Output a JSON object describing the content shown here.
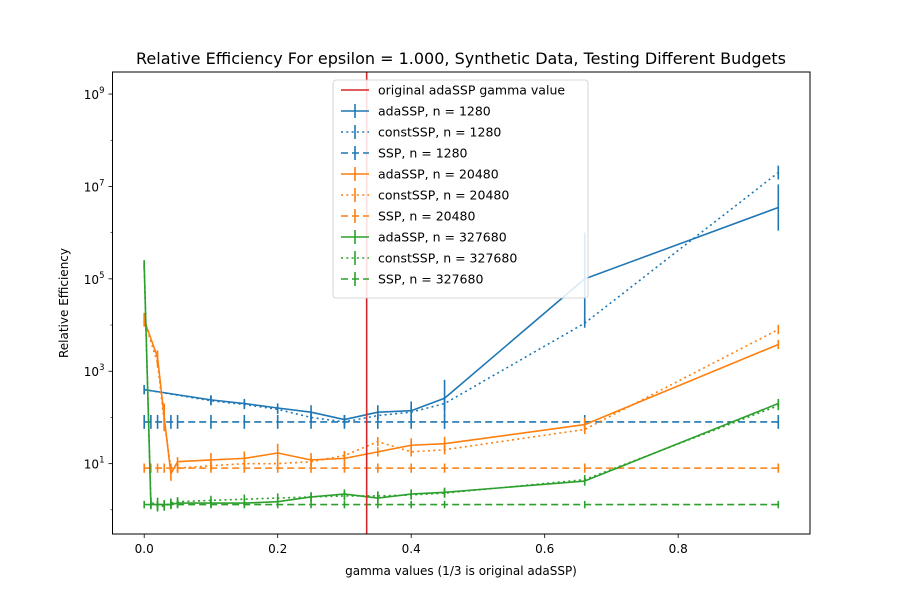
{
  "chart_data": {
    "type": "line",
    "title": "Relative Efficiency For epsilon = 1.000, Synthetic Data, Testing Different Budgets",
    "xlabel": "gamma values (1/3 is original adaSSP)",
    "ylabel": "Relative Efficiency",
    "xlim": [
      -0.0475,
      0.9975
    ],
    "ylim": [
      0.3,
      3000000000
    ],
    "yscale": "log",
    "grid": false,
    "legend_position": "top-center",
    "x_ticks": [
      {
        "value": 0.0,
        "label": "0.0"
      },
      {
        "value": 0.2,
        "label": "0.2"
      },
      {
        "value": 0.4,
        "label": "0.4"
      },
      {
        "value": 0.6,
        "label": "0.6"
      },
      {
        "value": 0.8,
        "label": "0.8"
      }
    ],
    "y_ticks": [
      {
        "value": 10,
        "base": "10",
        "exp": "1"
      },
      {
        "value": 1000,
        "base": "10",
        "exp": "3"
      },
      {
        "value": 100000,
        "base": "10",
        "exp": "5"
      },
      {
        "value": 10000000,
        "base": "10",
        "exp": "7"
      },
      {
        "value": 1000000000,
        "base": "10",
        "exp": "9"
      }
    ],
    "reference_line": {
      "name": "original adaSSP gamma value",
      "x": 0.3333,
      "color": "#d62728"
    },
    "series": [
      {
        "name": "adaSSP, n = 1280",
        "color": "#1f77b4",
        "dash": "solid",
        "x": [
          0.0,
          0.1,
          0.15,
          0.2,
          0.25,
          0.3,
          0.35,
          0.4,
          0.45,
          0.66,
          0.95
        ],
        "y": [
          400,
          240,
          200,
          160,
          130,
          90,
          130,
          140,
          260,
          100000,
          3500000
        ],
        "err": [
          0.1,
          0.1,
          0.1,
          0.1,
          0.15,
          0.1,
          0.15,
          0.2,
          0.4,
          1.0,
          0.5
        ]
      },
      {
        "name": "constSSP, n = 1280",
        "color": "#1f77b4",
        "dash": "dotted",
        "x": [
          0.0,
          0.1,
          0.15,
          0.2,
          0.25,
          0.3,
          0.35,
          0.4,
          0.45,
          0.66,
          0.95
        ],
        "y": [
          400,
          230,
          190,
          150,
          100,
          80,
          110,
          130,
          200,
          11000,
          20000000
        ],
        "err": [
          0.1,
          0.1,
          0.1,
          0.1,
          0.1,
          0.1,
          0.1,
          0.1,
          0.15,
          0.1,
          0.15
        ]
      },
      {
        "name": "SSP, n = 1280",
        "color": "#1f77b4",
        "dash": "dashed",
        "x": [
          0.0,
          0.01,
          0.02,
          0.03,
          0.04,
          0.05,
          0.1,
          0.15,
          0.2,
          0.25,
          0.3,
          0.35,
          0.4,
          0.45,
          0.66,
          0.95
        ],
        "y": [
          80,
          80,
          80,
          80,
          80,
          80,
          80,
          80,
          80,
          80,
          80,
          80,
          80,
          80,
          80,
          80
        ],
        "err": [
          0.15,
          0.15,
          0.15,
          0.15,
          0.15,
          0.15,
          0.15,
          0.15,
          0.15,
          0.15,
          0.15,
          0.15,
          0.15,
          0.15,
          0.15,
          0.15
        ]
      },
      {
        "name": "adaSSP, n = 20480",
        "color": "#ff7f0e",
        "dash": "solid",
        "x": [
          0.0,
          0.02,
          0.03,
          0.04,
          0.05,
          0.1,
          0.15,
          0.2,
          0.25,
          0.3,
          0.35,
          0.4,
          0.45,
          0.66,
          0.95
        ],
        "y": [
          13000,
          2000,
          100,
          6,
          11,
          12,
          13,
          17,
          12,
          13,
          18,
          25,
          27,
          70,
          3800
        ],
        "err": [
          0.15,
          0.15,
          0.3,
          0.15,
          0.1,
          0.15,
          0.15,
          0.2,
          0.15,
          0.15,
          0.1,
          0.15,
          0.15,
          0.15,
          0.1
        ]
      },
      {
        "name": "constSSP, n = 20480",
        "color": "#ff7f0e",
        "dash": "dotted",
        "x": [
          0.0,
          0.02,
          0.03,
          0.04,
          0.05,
          0.1,
          0.15,
          0.2,
          0.25,
          0.3,
          0.35,
          0.4,
          0.45,
          0.66,
          0.95
        ],
        "y": [
          13000,
          1500,
          80,
          8,
          8,
          9,
          10,
          10,
          11,
          15,
          30,
          18,
          20,
          55,
          8000
        ],
        "err": [
          0.1,
          0.1,
          0.15,
          0.1,
          0.1,
          0.1,
          0.1,
          0.1,
          0.1,
          0.1,
          0.1,
          0.1,
          0.1,
          0.1,
          0.1
        ]
      },
      {
        "name": "SSP, n = 20480",
        "color": "#ff7f0e",
        "dash": "dashed",
        "x": [
          0.0,
          0.01,
          0.02,
          0.03,
          0.04,
          0.05,
          0.1,
          0.15,
          0.2,
          0.25,
          0.3,
          0.35,
          0.4,
          0.45,
          0.66,
          0.95
        ],
        "y": [
          8,
          8,
          8,
          8,
          8,
          8,
          8,
          8,
          8,
          8,
          8,
          8,
          8,
          8,
          8,
          8
        ],
        "err": [
          0.1,
          0.1,
          0.1,
          0.1,
          0.1,
          0.1,
          0.1,
          0.1,
          0.1,
          0.1,
          0.1,
          0.1,
          0.1,
          0.1,
          0.1,
          0.1
        ]
      },
      {
        "name": "adaSSP, n = 327680",
        "color": "#2ca02c",
        "dash": "solid",
        "x": [
          0.0,
          0.01,
          0.02,
          0.03,
          0.04,
          0.05,
          0.1,
          0.15,
          0.2,
          0.25,
          0.3,
          0.35,
          0.4,
          0.45,
          0.66,
          0.95
        ],
        "y": [
          200000,
          1.3,
          1.3,
          1.3,
          1.3,
          1.4,
          1.4,
          1.4,
          1.5,
          1.9,
          2.2,
          1.8,
          2.2,
          2.4,
          4.2,
          200
        ],
        "err": [
          0.1,
          0.1,
          0.15,
          0.1,
          0.1,
          0.1,
          0.1,
          0.1,
          0.1,
          0.1,
          0.1,
          0.1,
          0.1,
          0.1,
          0.1,
          0.1
        ]
      },
      {
        "name": "constSSP, n = 327680",
        "color": "#2ca02c",
        "dash": "dotted",
        "x": [
          0.0,
          0.01,
          0.02,
          0.03,
          0.04,
          0.05,
          0.1,
          0.15,
          0.2,
          0.25,
          0.3,
          0.35,
          0.4,
          0.45,
          0.66,
          0.95
        ],
        "y": [
          200000,
          1.5,
          1.2,
          1.2,
          1.4,
          1.5,
          1.6,
          1.7,
          1.8,
          1.9,
          2.0,
          2.0,
          2.1,
          2.3,
          4.5,
          180
        ],
        "err": [
          0.1,
          0.1,
          0.1,
          0.1,
          0.1,
          0.1,
          0.1,
          0.1,
          0.1,
          0.1,
          0.1,
          0.1,
          0.1,
          0.1,
          0.1,
          0.1
        ]
      },
      {
        "name": "SSP, n = 327680",
        "color": "#2ca02c",
        "dash": "dashed",
        "x": [
          0.0,
          0.01,
          0.02,
          0.03,
          0.04,
          0.05,
          0.1,
          0.15,
          0.2,
          0.25,
          0.3,
          0.35,
          0.4,
          0.45,
          0.66,
          0.95
        ],
        "y": [
          1.3,
          1.3,
          1.3,
          1.3,
          1.3,
          1.3,
          1.3,
          1.3,
          1.3,
          1.3,
          1.3,
          1.3,
          1.3,
          1.3,
          1.3,
          1.3
        ],
        "err": [
          0.08,
          0.08,
          0.08,
          0.08,
          0.08,
          0.08,
          0.08,
          0.08,
          0.08,
          0.08,
          0.08,
          0.08,
          0.08,
          0.08,
          0.08,
          0.08
        ]
      }
    ]
  }
}
